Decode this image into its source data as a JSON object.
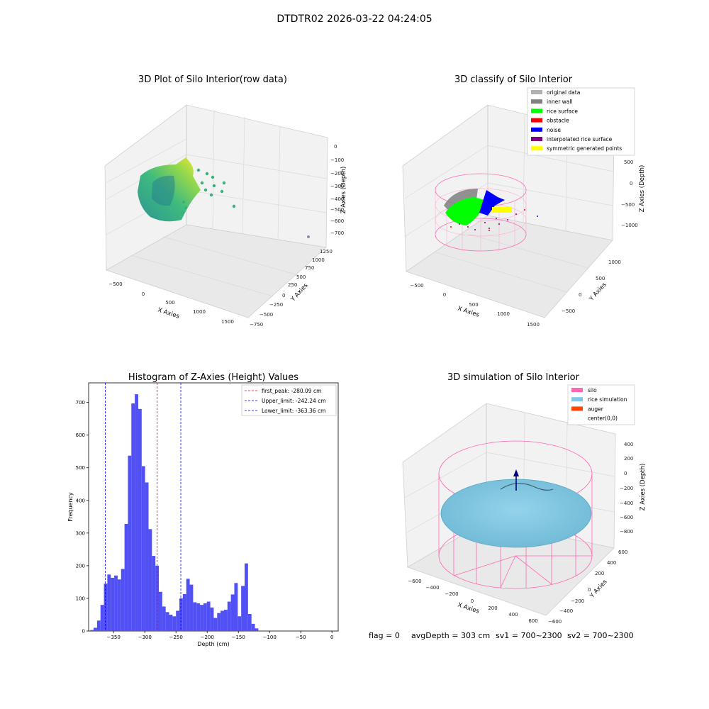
{
  "suptitle": "DTDTR02 2026-03-22 04:24:05",
  "footer": {
    "flag": "flag = 0",
    "avg_depth": "avgDepth = 303 cm",
    "sv1": "sv1 = 700~2300",
    "sv2": "sv2 = 700~2300"
  },
  "colors": {
    "hist_bar": "#5050f5",
    "peak_line": "#ff0000",
    "limit_line": "#0000ff",
    "silo": "#ff69b4",
    "rice_sim": "#7ec8e3",
    "auger": "#ff4500",
    "rice_surface": "#00ff00",
    "noise": "#0000ff",
    "inner_wall": "#808080",
    "original": "#b0b0b0",
    "interp": "#800080",
    "symmetric": "#ffff00",
    "obstacle": "#ff0000"
  },
  "chart_data": [
    {
      "type": "scatter",
      "title": "3D Plot of Silo Interior(row data)",
      "xlabel": "X Axies",
      "ylabel": "Y Axies",
      "zlabel": "Z Axies (Depth)",
      "x_ticks": [
        "−500",
        "0",
        "500",
        "1000",
        "1500"
      ],
      "y_ticks": [
        "−750",
        "−500",
        "−250",
        "0",
        "250",
        "500",
        "750",
        "1000",
        "1250"
      ],
      "z_ticks": [
        "0",
        "−100",
        "−200",
        "−300",
        "−400",
        "−500",
        "−600",
        "−700"
      ],
      "colormap": "viridis"
    },
    {
      "type": "scatter",
      "title": "3D classify of Silo Interior",
      "xlabel": "X Axies",
      "ylabel": "Y Axies",
      "zlabel": "Z Axies (Depth)",
      "x_ticks": [
        "−500",
        "0",
        "500",
        "1000",
        "1500"
      ],
      "y_ticks": [
        "−500",
        "0",
        "500",
        "1000"
      ],
      "z_ticks": [
        "500",
        "0",
        "−500",
        "−1000"
      ],
      "legend": [
        {
          "label": "original data",
          "color": "#b0b0b0"
        },
        {
          "label": "inner wall",
          "color": "#808080"
        },
        {
          "label": "rice surface",
          "color": "#00ff00"
        },
        {
          "label": "obstacle",
          "color": "#ff0000"
        },
        {
          "label": "noise",
          "color": "#0000ff"
        },
        {
          "label": "interpolated rice surface",
          "color": "#800080"
        },
        {
          "label": "symmetric generated points",
          "color": "#ffff00"
        }
      ]
    },
    {
      "type": "bar",
      "title": "Histogram of Z-Axies (Height) Values",
      "xlabel": "Depth (cm)",
      "ylabel": "Frequency",
      "xlim": [
        -390,
        10
      ],
      "ylim": [
        0,
        760
      ],
      "bin_width": 5.5,
      "x_ticks": [
        -350,
        -300,
        -250,
        -200,
        -150,
        -100,
        -50,
        0
      ],
      "y_ticks": [
        0,
        100,
        200,
        300,
        400,
        500,
        600,
        700
      ],
      "values": [
        3,
        10,
        32,
        80,
        145,
        173,
        163,
        170,
        158,
        190,
        328,
        537,
        697,
        725,
        680,
        505,
        455,
        312,
        230,
        200,
        120,
        75,
        58,
        50,
        45,
        62,
        100,
        113,
        160,
        142,
        88,
        85,
        80,
        85,
        90,
        72,
        40,
        55,
        62,
        65,
        90,
        112,
        147,
        45,
        138,
        207,
        52,
        22,
        8
      ],
      "bin_start": -387.5,
      "lines": [
        {
          "label": "first_peak: -280.09 cm",
          "x": -280.09,
          "color": "#ff0000"
        },
        {
          "label": "Upper_limit: -242.24 cm",
          "x": -242.24,
          "color": "#0000ff"
        },
        {
          "label": "Lower_limit: -363.36 cm",
          "x": -363.36,
          "color": "#0000ff"
        }
      ]
    },
    {
      "type": "scatter",
      "title": "3D simulation of Silo Interior",
      "xlabel": "X Axies",
      "ylabel": "Y Axies",
      "zlabel": "Z Axies (Depth)",
      "x_ticks": [
        "−600",
        "−400",
        "−200",
        "0",
        "200",
        "400",
        "600"
      ],
      "y_ticks": [
        "−600",
        "−400",
        "−200",
        "0",
        "200",
        "400",
        "600"
      ],
      "z_ticks": [
        "400",
        "200",
        "0",
        "−200",
        "−400",
        "−600",
        "−800"
      ],
      "legend": [
        {
          "label": "silo",
          "color": "#ff69b4"
        },
        {
          "label": "rice simulation",
          "color": "#7ec8e3"
        },
        {
          "label": "auger",
          "color": "#ff4500"
        },
        {
          "label": "center(0,0)",
          "color": "#000080"
        }
      ]
    }
  ]
}
